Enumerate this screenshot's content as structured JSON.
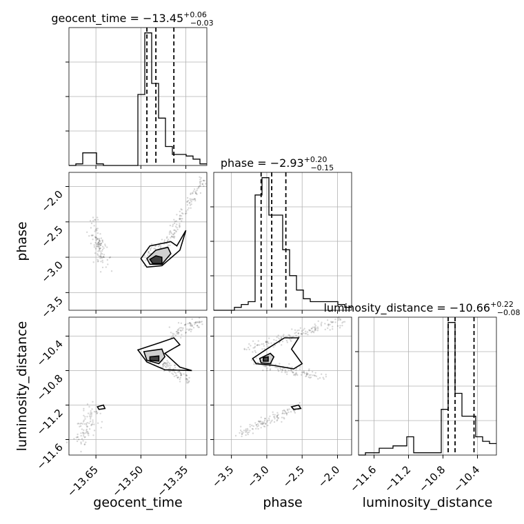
{
  "chart_data": {
    "type": "corner",
    "parameters": [
      "geocent_time",
      "phase",
      "luminosity_distance"
    ],
    "axis_labels": {
      "geocent_time": "geocent_time",
      "phase": "phase",
      "luminosity_distance": "luminosity_distance"
    },
    "ticks": {
      "geocent_time": [
        "−13.65",
        "−13.50",
        "−13.35"
      ],
      "phase": [
        "−3.5",
        "−3.0",
        "−2.5",
        "−2.0"
      ],
      "luminosity_distance": [
        "−11.6",
        "−11.2",
        "−10.8",
        "−10.4"
      ]
    },
    "tick_values": {
      "geocent_time": [
        -13.65,
        -13.5,
        -13.35
      ],
      "phase": [
        -3.5,
        -3.0,
        -2.5,
        -2.0
      ],
      "luminosity_distance": [
        -11.6,
        -11.2,
        -10.8,
        -10.4
      ]
    },
    "ranges": {
      "geocent_time": [
        -13.74,
        -13.28
      ],
      "phase": [
        -3.75,
        -1.8
      ],
      "luminosity_distance": [
        -11.78,
        -10.18
      ]
    },
    "titles": [
      {
        "param": "geocent_time",
        "main": "geocent_time = −13.45",
        "sup": "+0.06",
        "sub": "−0.03"
      },
      {
        "param": "phase",
        "main": "phase = −2.93",
        "sup": "+0.20",
        "sub": "−0.15"
      },
      {
        "param": "luminosity_distance",
        "main": "luminosity_distance = −10.66",
        "sup": "+0.22",
        "sub": "−0.08"
      }
    ],
    "quantiles": {
      "geocent_time": [
        -13.48,
        -13.45,
        -13.39
      ],
      "phase": [
        -3.08,
        -2.93,
        -2.73
      ],
      "luminosity_distance": [
        -10.74,
        -10.66,
        -10.44
      ]
    },
    "histograms": {
      "geocent_time": {
        "edges": [
          -13.74,
          -13.717,
          -13.694,
          -13.671,
          -13.648,
          -13.625,
          -13.602,
          -13.579,
          -13.556,
          -13.533,
          -13.51,
          -13.487,
          -13.464,
          -13.441,
          -13.418,
          -13.395,
          -13.372,
          -13.349,
          -13.326,
          -13.303,
          -13.28
        ],
        "counts": [
          0,
          1,
          8,
          8,
          1,
          0,
          0,
          0,
          0,
          0,
          45,
          84,
          52,
          30,
          12,
          7,
          7,
          6,
          4,
          1
        ]
      },
      "phase": {
        "edges": [
          -3.75,
          -3.6525,
          -3.555,
          -3.4575,
          -3.36,
          -3.2625,
          -3.165,
          -3.0675,
          -2.97,
          -2.8725,
          -2.775,
          -2.6775,
          -2.58,
          -2.4825,
          -2.385,
          -2.2875,
          -2.19,
          -2.0925,
          -1.995,
          -1.8975,
          -1.8
        ],
        "counts": [
          0,
          0,
          0,
          1,
          2,
          3,
          40,
          46,
          33,
          33,
          21,
          12,
          7,
          4,
          3,
          3,
          3,
          3,
          2,
          1
        ]
      },
      "luminosity_distance": {
        "edges": [
          -11.78,
          -11.7,
          -11.62,
          -11.54,
          -11.46,
          -11.38,
          -11.3,
          -11.22,
          -11.14,
          -11.06,
          -10.98,
          -10.9,
          -10.82,
          -10.74,
          -10.66,
          -10.58,
          -10.5,
          -10.42,
          -10.34,
          -10.26,
          -10.18
        ],
        "counts": [
          0,
          1,
          1,
          3,
          3,
          4,
          4,
          8,
          1,
          1,
          1,
          1,
          20,
          58,
          27,
          17,
          17,
          8,
          6,
          5
        ]
      }
    },
    "grid": true
  }
}
